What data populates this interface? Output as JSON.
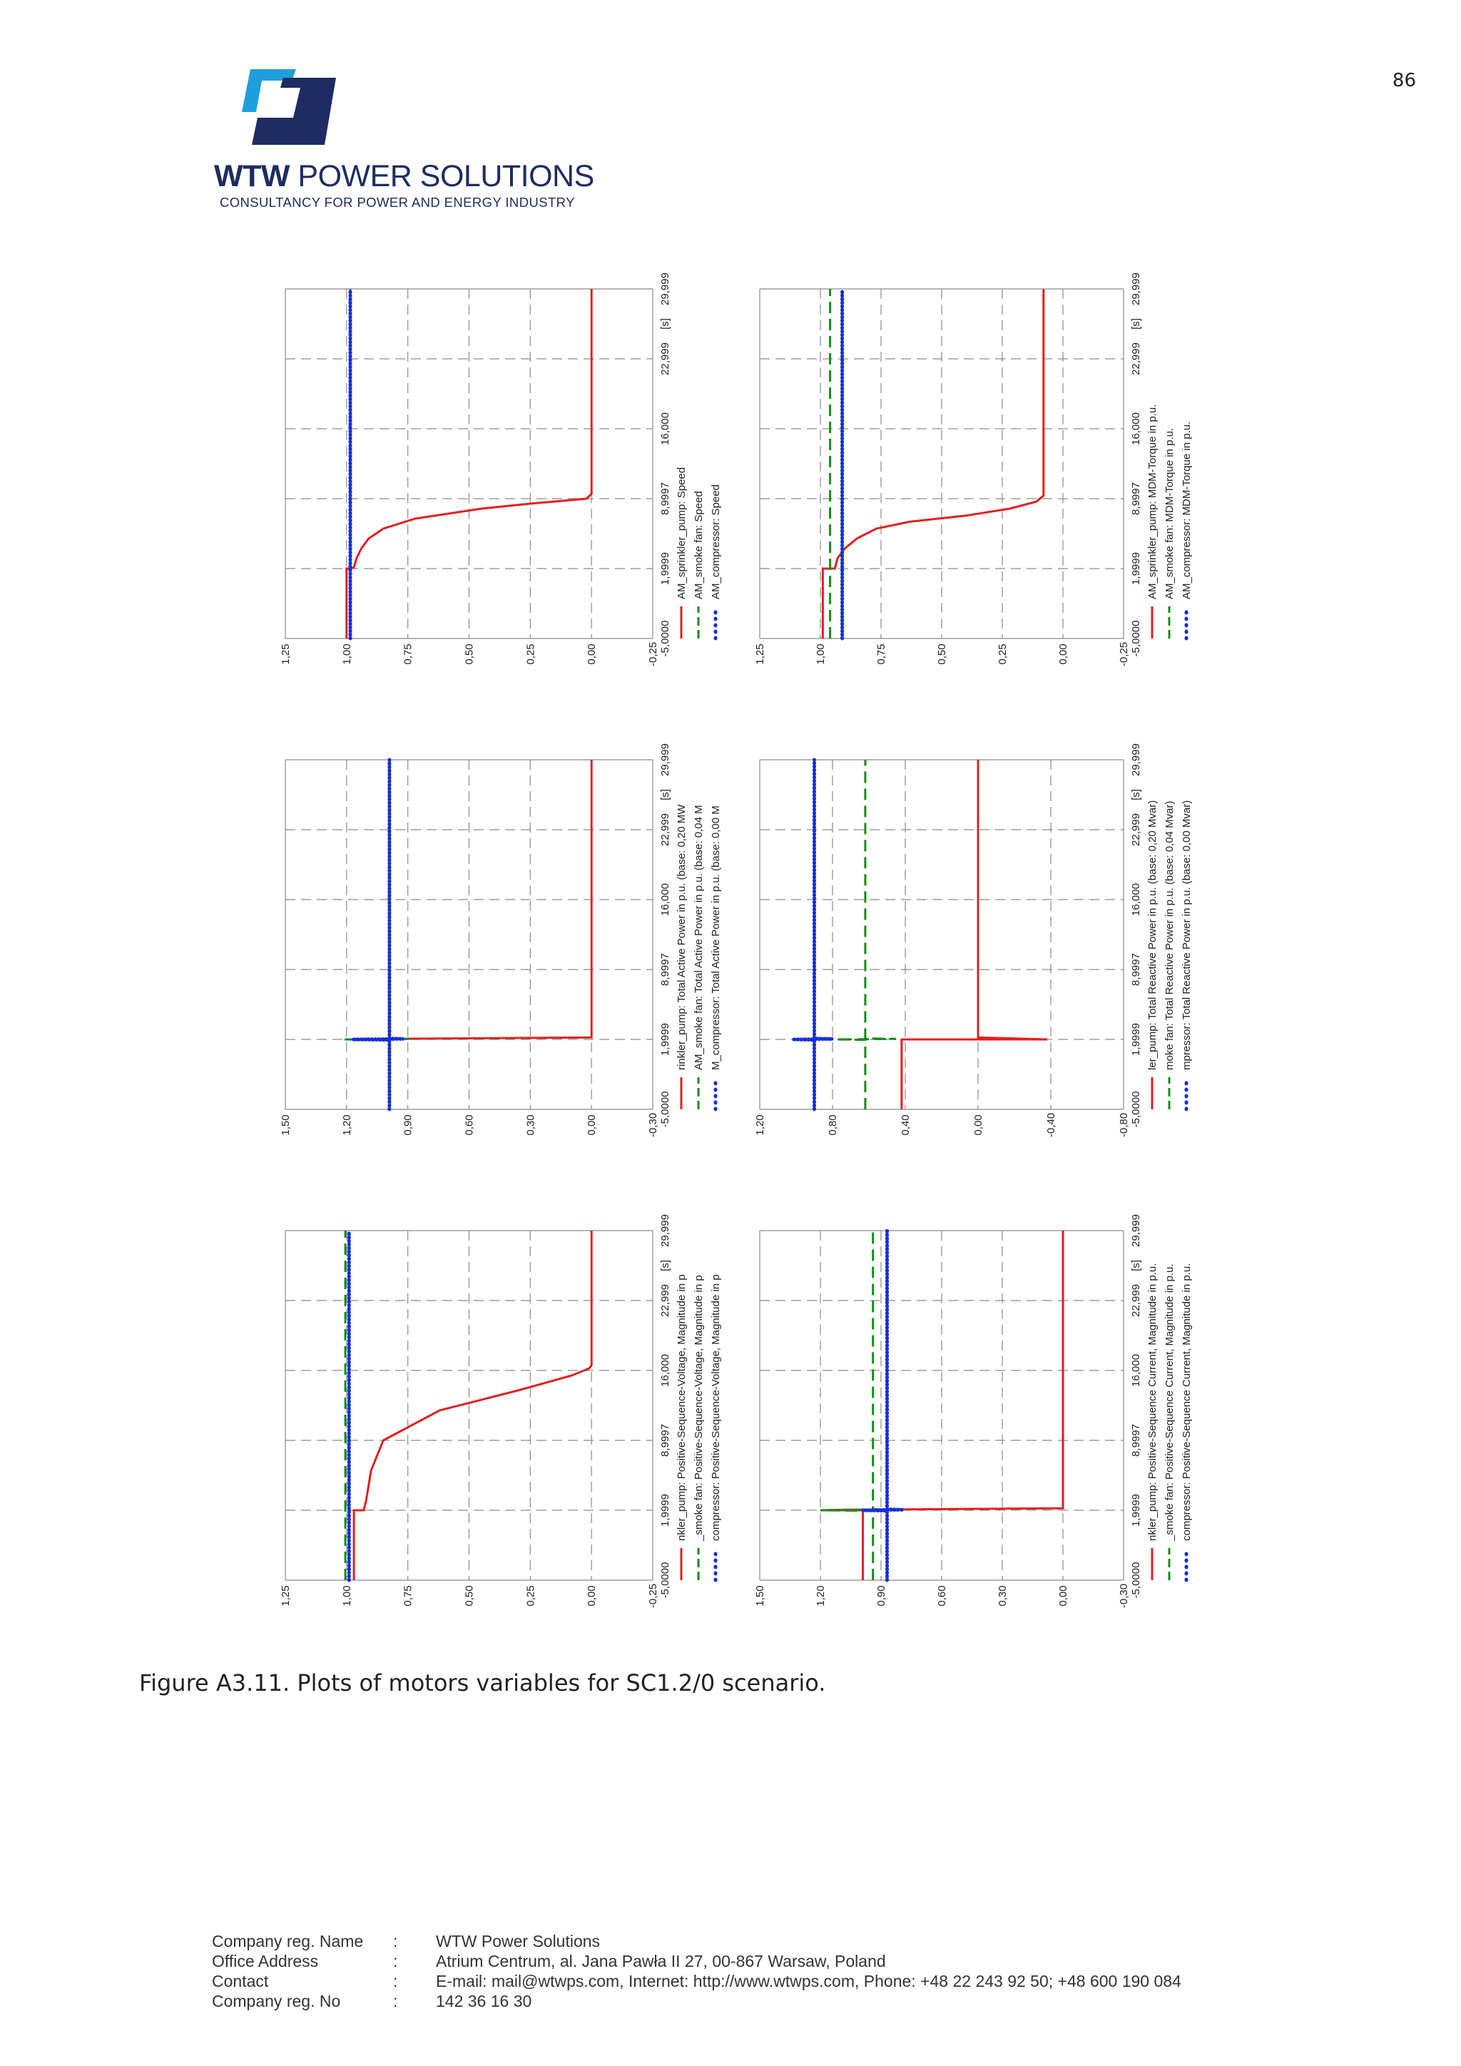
{
  "page_number": "86",
  "header": {
    "logo_bold": "WTW",
    "logo_rest": "POWER SOLUTIONS",
    "tagline": "CONSULTANCY FOR POWER AND ENERGY INDUSTRY"
  },
  "caption": "Figure A3.11. Plots of motors variables for SC1.2/0 scenario.",
  "footer": {
    "rows": [
      {
        "label": "Company reg. Name",
        "sep": ":",
        "value": "WTW Power Solutions"
      },
      {
        "label": "Office Address",
        "sep": ":",
        "value": "Atrium Centrum, al. Jana Pawła II 27, 00-867 Warsaw, Poland"
      },
      {
        "label": "Contact",
        "sep": ":",
        "value": "E-mail: mail@wtwps.com, Internet: http://www.wtwps.com, Phone: +48 22 243 92 50; +48 600 190 084"
      },
      {
        "label": "Company reg. No",
        "sep": ":",
        "value": "142 36 16 30"
      }
    ]
  },
  "colors": {
    "red": "#e02020",
    "green": "#1a8a1a",
    "blue": "#1530d8",
    "grid": "#8a8a8a"
  },
  "chart_data": [
    {
      "type": "line",
      "title": "",
      "xlabel": "[s]",
      "x_ticks": [
        "-5,0000",
        "1,9999",
        "8,9997",
        "16,000",
        "22,999",
        "29,999"
      ],
      "ylim": [
        -0.25,
        1.25
      ],
      "y_ticks": [
        "1,25",
        "1,00",
        "0,75",
        "0,50",
        "0,25",
        "0,00",
        "-0,25"
      ],
      "legend": [
        "AM_sprinkler_pump: Speed",
        "AM_smoke fan: Speed",
        "AM_compressor: Speed"
      ],
      "series": [
        {
          "name": "AM_sprinkler_pump: Speed",
          "color": "red",
          "style": "solid",
          "points": [
            [
              -5,
              1.0
            ],
            [
              2.0,
              1.0
            ],
            [
              2.0,
              0.99
            ],
            [
              2.1,
              0.97
            ],
            [
              3,
              0.96
            ],
            [
              4,
              0.94
            ],
            [
              5,
              0.91
            ],
            [
              6,
              0.85
            ],
            [
              7,
              0.72
            ],
            [
              8,
              0.45
            ],
            [
              8.5,
              0.25
            ],
            [
              9.0,
              0.02
            ],
            [
              9.5,
              0.0
            ],
            [
              29.999,
              0.0
            ]
          ]
        },
        {
          "name": "AM_smoke fan: Speed",
          "color": "green",
          "style": "dashed",
          "points": [
            [
              -5,
              0.985
            ],
            [
              29.999,
              0.985
            ]
          ]
        },
        {
          "name": "AM_compressor: Speed",
          "color": "blue",
          "style": "dotted",
          "points": [
            [
              -5,
              0.985
            ],
            [
              29.999,
              0.985
            ]
          ]
        }
      ]
    },
    {
      "type": "line",
      "title": "",
      "xlabel": "[s]",
      "x_ticks": [
        "-5,0000",
        "1,9999",
        "8,9997",
        "16,000",
        "22,999",
        "29,999"
      ],
      "ylim": [
        -0.25,
        1.25
      ],
      "y_ticks": [
        "1,25",
        "1,00",
        "0,75",
        "0,50",
        "0,25",
        "0,00",
        "-0,25"
      ],
      "legend": [
        "AM_sprinkler_pump: MDM-Torque in p.u.",
        "AM_smoke fan: MDM-Torque in p.u.",
        "AM_compressor: MDM-Torque in p.u."
      ],
      "series": [
        {
          "name": "AM_sprinkler_pump: MDM-Torque in p.u.",
          "color": "red",
          "style": "solid",
          "points": [
            [
              -5,
              0.99
            ],
            [
              2.0,
              0.99
            ],
            [
              2.0,
              0.94
            ],
            [
              3,
              0.93
            ],
            [
              4,
              0.9
            ],
            [
              5,
              0.85
            ],
            [
              6,
              0.77
            ],
            [
              6.7,
              0.63
            ],
            [
              7.3,
              0.4
            ],
            [
              8.0,
              0.22
            ],
            [
              8.7,
              0.11
            ],
            [
              9.3,
              0.08
            ],
            [
              9.3,
              0.08
            ],
            [
              29.999,
              0.08
            ]
          ]
        },
        {
          "name": "AM_smoke fan: MDM-Torque in p.u.",
          "color": "green",
          "style": "dashed",
          "points": [
            [
              -5,
              0.96
            ],
            [
              29.999,
              0.96
            ]
          ]
        },
        {
          "name": "AM_compressor: MDM-Torque in p.u.",
          "color": "blue",
          "style": "dotted",
          "points": [
            [
              -5,
              0.91
            ],
            [
              29.999,
              0.91
            ]
          ]
        }
      ]
    },
    {
      "type": "line",
      "title": "",
      "xlabel": "[s]",
      "x_ticks": [
        "-5,0000",
        "1,9999",
        "8,9997",
        "16,000",
        "22,999",
        "29,999"
      ],
      "ylim": [
        -0.3,
        1.5
      ],
      "y_ticks": [
        "1,50",
        "1,20",
        "0,90",
        "0,60",
        "0,30",
        "0,00",
        "-0,30"
      ],
      "legend": [
        "rinkler_pump: Total Active Power in p.u. (base: 0,20 MW",
        "AM_smoke fan: Total Active Power in p.u. (base: 0,04 M",
        "M_compressor: Total Active Power in p.u. (base: 0,00 M"
      ],
      "series": [
        {
          "name": "rinkler_pump: Total Active Power in p.u. (base: 0,20 MW",
          "color": "red",
          "style": "solid",
          "points": [
            [
              -5,
              0.99
            ],
            [
              2.0,
              0.99
            ],
            [
              2.0,
              1.1
            ],
            [
              2.05,
              0.99
            ],
            [
              2.2,
              0.0
            ],
            [
              29.999,
              0.0
            ]
          ]
        },
        {
          "name": "AM_smoke fan: Total Active Power in p.u. (base: 0,04 M",
          "color": "green",
          "style": "dashed",
          "points": [
            [
              -5,
              0.99
            ],
            [
              1.95,
              0.99
            ],
            [
              2.0,
              1.22
            ],
            [
              2.05,
              0.88
            ],
            [
              2.1,
              0.99
            ],
            [
              29.999,
              0.99
            ]
          ]
        },
        {
          "name": "M_compressor: Total Active Power in p.u. (base: 0,00 M",
          "color": "blue",
          "style": "dotted",
          "points": [
            [
              -5,
              0.99
            ],
            [
              1.95,
              0.99
            ],
            [
              2.0,
              1.17
            ],
            [
              2.05,
              0.92
            ],
            [
              2.1,
              0.99
            ],
            [
              29.999,
              0.99
            ]
          ]
        }
      ]
    },
    {
      "type": "line",
      "title": "",
      "xlabel": "[s]",
      "x_ticks": [
        "-5,0000",
        "1,9999",
        "8,9997",
        "16,000",
        "22,999",
        "29,999"
      ],
      "ylim": [
        -0.8,
        1.2
      ],
      "y_ticks": [
        "1,20",
        "0,80",
        "0,40",
        "0,00",
        "-0,40",
        "-0,80"
      ],
      "legend": [
        "ler_pump: Total Reactive Power in p.u. (base: 0,20 Mvar)",
        "moke fan: Total Reactive Power in p.u. (base: 0,04 Mvar)",
        "mpressor: Total Reactive Power in p.u. (base: 0,00 Mvar)"
      ],
      "series": [
        {
          "name": "ler_pump: Total Reactive Power in p.u. (base: 0,20 Mvar)",
          "color": "red",
          "style": "solid",
          "points": [
            [
              -5,
              0.42
            ],
            [
              2.0,
              0.42
            ],
            [
              2.0,
              -0.38
            ],
            [
              2.2,
              0.0
            ],
            [
              29.999,
              0.0
            ]
          ]
        },
        {
          "name": "moke fan: Total Reactive Power in p.u. (base: 0,04 Mvar)",
          "color": "green",
          "style": "dashed",
          "points": [
            [
              -5,
              0.62
            ],
            [
              1.95,
              0.62
            ],
            [
              2.0,
              0.78
            ],
            [
              2.05,
              0.45
            ],
            [
              2.1,
              0.62
            ],
            [
              29.999,
              0.62
            ]
          ]
        },
        {
          "name": "mpressor: Total Reactive Power in p.u. (base: 0,00 Mvar)",
          "color": "blue",
          "style": "dotted",
          "points": [
            [
              -5,
              0.9
            ],
            [
              1.95,
              0.9
            ],
            [
              2.0,
              1.02
            ],
            [
              2.05,
              0.8
            ],
            [
              2.1,
              0.9
            ],
            [
              29.999,
              0.9
            ]
          ]
        }
      ]
    },
    {
      "type": "line",
      "title": "",
      "xlabel": "[s]",
      "x_ticks": [
        "-5,0000",
        "1,9999",
        "8,9997",
        "16,000",
        "22,999",
        "29,999"
      ],
      "ylim": [
        -0.25,
        1.25
      ],
      "y_ticks": [
        "1,25",
        "1,00",
        "0,75",
        "0,50",
        "0,25",
        "0,00",
        "-0,25"
      ],
      "legend": [
        "nkler_pump: Positive-Sequence-Voltage, Magnitude in p",
        "_smoke fan: Positive-Sequence-Voltage, Magnitude in p",
        "compressor: Positive-Sequence-Voltage, Magnitude in p"
      ],
      "series": [
        {
          "name": "nkler_pump: Positive-Sequence-Voltage, Magnitude in p",
          "color": "red",
          "style": "solid",
          "points": [
            [
              -5,
              0.97
            ],
            [
              2.0,
              0.97
            ],
            [
              2.0,
              0.93
            ],
            [
              3,
              0.92
            ],
            [
              6,
              0.9
            ],
            [
              9,
              0.85
            ],
            [
              12,
              0.62
            ],
            [
              14,
              0.3
            ],
            [
              15.5,
              0.08
            ],
            [
              16.2,
              0.01
            ],
            [
              16.5,
              0.0
            ],
            [
              29.999,
              0.0
            ]
          ]
        },
        {
          "name": "_smoke fan: Positive-Sequence-Voltage, Magnitude in p",
          "color": "green",
          "style": "dashed",
          "points": [
            [
              -5,
              1.005
            ],
            [
              29.999,
              1.005
            ]
          ]
        },
        {
          "name": "compressor: Positive-Sequence-Voltage, Magnitude in p",
          "color": "blue",
          "style": "dotted",
          "points": [
            [
              -5,
              0.99
            ],
            [
              29.999,
              0.99
            ]
          ]
        }
      ]
    },
    {
      "type": "line",
      "title": "",
      "xlabel": "[s]",
      "x_ticks": [
        "-5,0000",
        "1,9999",
        "8,9997",
        "16,000",
        "22,999",
        "29,999"
      ],
      "ylim": [
        -0.3,
        1.5
      ],
      "y_ticks": [
        "1,50",
        "1,20",
        "0,90",
        "0,60",
        "0,30",
        "0,00",
        "-0,30"
      ],
      "legend": [
        "nkler_pump: Positive-Sequence Current, Magnitude in p.u.",
        "_smoke fan: Positive-Sequence Current, Magnitude in p.u.",
        "compressor: Positive-Sequence Current, Magnitude in p.u."
      ],
      "series": [
        {
          "name": "nkler_pump: Positive-Sequence Current, Magnitude in p.u.",
          "color": "red",
          "style": "solid",
          "points": [
            [
              -5,
              0.99
            ],
            [
              2.0,
              0.99
            ],
            [
              2.0,
              1.2
            ],
            [
              2.05,
              1.08
            ],
            [
              2.2,
              0.0
            ],
            [
              29.999,
              0.0
            ]
          ]
        },
        {
          "name": "_smoke fan: Positive-Sequence Current, Magnitude in p.u.",
          "color": "green",
          "style": "dashed",
          "points": [
            [
              -5,
              0.94
            ],
            [
              1.95,
              0.94
            ],
            [
              2.0,
              1.2
            ],
            [
              2.05,
              0.8
            ],
            [
              2.1,
              0.94
            ],
            [
              29.999,
              0.94
            ]
          ]
        },
        {
          "name": "compressor: Positive-Sequence Current, Magnitude in p.u.",
          "color": "blue",
          "style": "dotted",
          "points": [
            [
              -5,
              0.87
            ],
            [
              1.95,
              0.87
            ],
            [
              2.0,
              0.99
            ],
            [
              2.05,
              0.79
            ],
            [
              2.1,
              0.87
            ],
            [
              29.999,
              0.87
            ]
          ]
        }
      ]
    }
  ]
}
